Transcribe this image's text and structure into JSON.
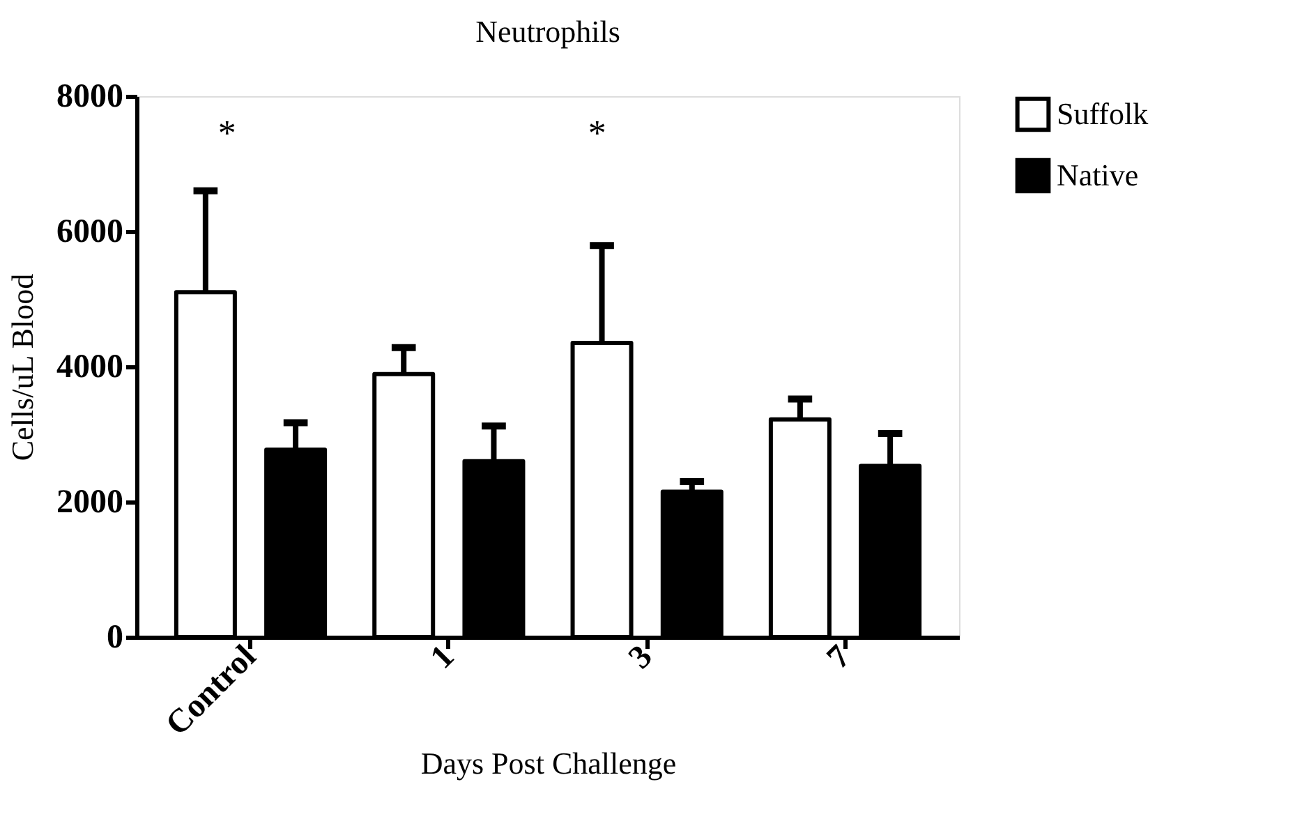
{
  "chart_data": {
    "type": "bar",
    "title": "Neutrophils",
    "xlabel": "Days Post Challenge",
    "ylabel": "Cells/uL Blood",
    "categories": [
      "Control",
      "1",
      "3",
      "7"
    ],
    "series": [
      {
        "name": "Suffolk",
        "color": "#ffffff",
        "values": [
          5100,
          3890,
          4350,
          3220
        ],
        "errors": [
          [
            5100,
            6600
          ],
          [
            3890,
            4280
          ],
          [
            4350,
            5790
          ],
          [
            3220,
            3520
          ]
        ]
      },
      {
        "name": "Native",
        "color": "#000000",
        "values": [
          2770,
          2600,
          2150,
          2530
        ],
        "errors": [
          [
            2770,
            3170
          ],
          [
            2600,
            3120
          ],
          [
            2150,
            2300
          ],
          [
            2530,
            3010
          ]
        ]
      }
    ],
    "annotations": [
      "*",
      "*"
    ],
    "ylim": [
      0,
      8000
    ],
    "yticks": [
      0,
      2000,
      4000,
      6000,
      8000
    ],
    "grid": false,
    "legend": "top right"
  }
}
